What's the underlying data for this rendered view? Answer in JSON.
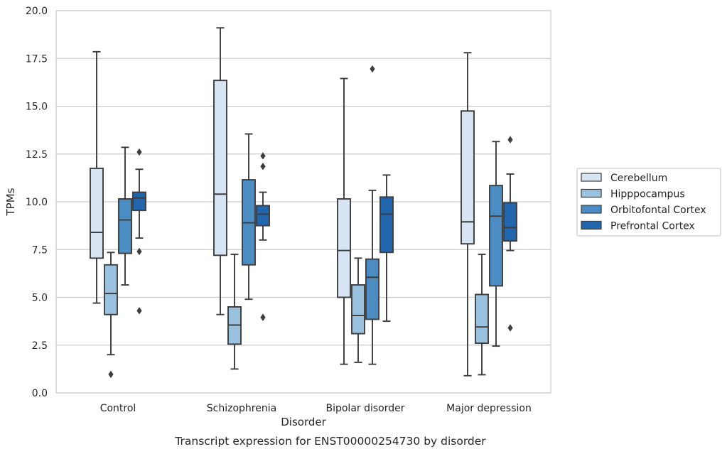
{
  "chart_data": {
    "type": "box",
    "title": "",
    "caption": "Transcript expression for ENST00000254730 by disorder",
    "xlabel": "Disorder",
    "ylabel": "TPMs",
    "ylim": [
      0,
      20
    ],
    "yticks": [
      "0.0",
      "2.5",
      "5.0",
      "7.5",
      "10.0",
      "12.5",
      "15.0",
      "17.5",
      "20.0"
    ],
    "grid": "horizontal",
    "legend_position": "right",
    "categories": [
      "Control",
      "Schizophrenia",
      "Bipolar disorder",
      "Major depression"
    ],
    "series": [
      {
        "name": "Cerebellum",
        "color": "#d6e4f3",
        "boxes": [
          {
            "min": 4.7,
            "q1": 7.05,
            "median": 8.4,
            "q3": 11.75,
            "max": 17.85,
            "outliers": []
          },
          {
            "min": 4.1,
            "q1": 7.2,
            "median": 10.4,
            "q3": 16.35,
            "max": 19.1,
            "outliers": []
          },
          {
            "min": 1.5,
            "q1": 5.0,
            "median": 7.45,
            "q3": 10.15,
            "max": 16.45,
            "outliers": []
          },
          {
            "min": 0.9,
            "q1": 7.8,
            "median": 8.95,
            "q3": 14.75,
            "max": 17.8,
            "outliers": []
          }
        ]
      },
      {
        "name": "Hipppocampus",
        "color": "#9ac2de",
        "boxes": [
          {
            "min": 2.0,
            "q1": 4.1,
            "median": 5.2,
            "q3": 6.7,
            "max": 7.35,
            "outliers": [
              0.97
            ]
          },
          {
            "min": 1.25,
            "q1": 2.55,
            "median": 3.55,
            "q3": 4.5,
            "max": 7.25,
            "outliers": []
          },
          {
            "min": 1.6,
            "q1": 3.1,
            "median": 4.05,
            "q3": 5.65,
            "max": 7.05,
            "outliers": []
          },
          {
            "min": 0.95,
            "q1": 2.6,
            "median": 3.45,
            "q3": 5.15,
            "max": 7.25,
            "outliers": []
          }
        ]
      },
      {
        "name": "Orbitofontal Cortex",
        "color": "#4b8dc2",
        "boxes": [
          {
            "min": 5.65,
            "q1": 7.3,
            "median": 9.05,
            "q3": 10.15,
            "max": 12.85,
            "outliers": []
          },
          {
            "min": 4.9,
            "q1": 6.7,
            "median": 8.9,
            "q3": 11.15,
            "max": 13.55,
            "outliers": []
          },
          {
            "min": 1.5,
            "q1": 3.85,
            "median": 6.05,
            "q3": 7.0,
            "max": 10.6,
            "outliers": [
              16.95
            ]
          },
          {
            "min": 2.45,
            "q1": 5.6,
            "median": 9.25,
            "q3": 10.85,
            "max": 13.15,
            "outliers": []
          }
        ]
      },
      {
        "name": "Prefrontal Cortex",
        "color": "#2166ac",
        "boxes": [
          {
            "min": 8.1,
            "q1": 9.55,
            "median": 10.2,
            "q3": 10.5,
            "max": 11.7,
            "outliers": [
              12.6,
              7.4,
              4.3
            ]
          },
          {
            "min": 8.0,
            "q1": 8.75,
            "median": 9.35,
            "q3": 9.8,
            "max": 10.5,
            "outliers": [
              12.4,
              11.85,
              3.95
            ]
          },
          {
            "min": 3.75,
            "q1": 7.35,
            "median": 9.35,
            "q3": 10.25,
            "max": 11.4,
            "outliers": []
          },
          {
            "min": 7.45,
            "q1": 7.95,
            "median": 8.65,
            "q3": 9.95,
            "max": 11.45,
            "outliers": [
              13.25,
              3.4
            ]
          }
        ]
      }
    ]
  }
}
